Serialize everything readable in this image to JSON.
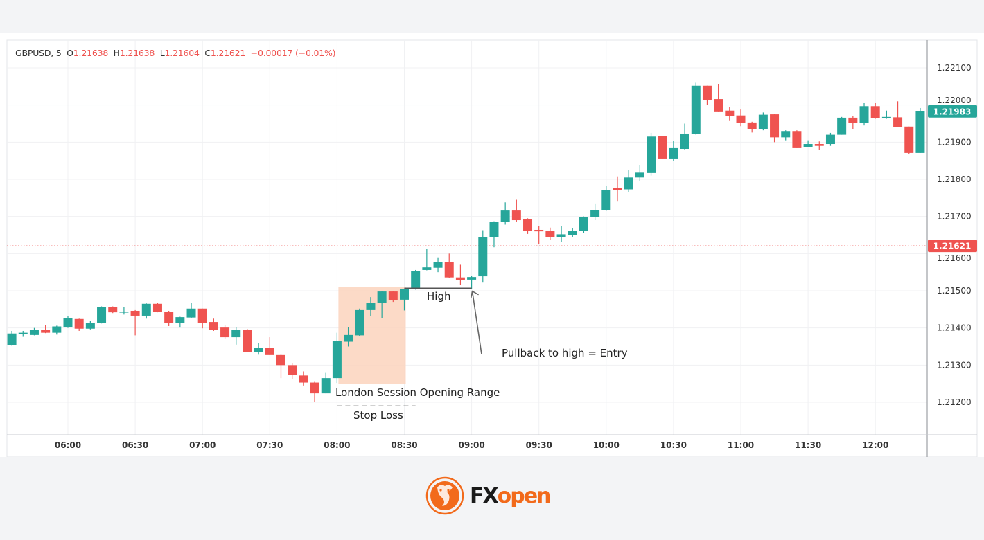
{
  "legend": {
    "symbol": "GBPUSD, 5",
    "open_label": "O",
    "open": "1.21638",
    "high_label": "H",
    "high": "1.21638",
    "low_label": "L",
    "low": "1.21604",
    "close_label": "C",
    "close": "1.21621",
    "change": "−0.00017 (−0.01%)"
  },
  "annotations": {
    "range_label": "London Session Opening Range",
    "stop_label": "Stop Loss",
    "high_label": "High",
    "entry_label": "Pullback to high = Entry"
  },
  "logo": {
    "text": "FXopen",
    "fx": "FX",
    "open": "open"
  },
  "colors": {
    "up": "#26a69a",
    "down": "#ef5350",
    "range_box": "#fbd3bd",
    "brand": "#f26a1b"
  },
  "chart_data": {
    "type": "candlestick",
    "title": "",
    "xlabel": "",
    "ylabel": "",
    "interval_minutes": 5,
    "first_candle_time": "05:35",
    "ylim": [
      1.211,
      1.222
    ],
    "grid": true,
    "y_ticks": [
      "1.21200",
      "1.21300",
      "1.21400",
      "1.21500",
      "1.21600",
      "1.21700",
      "1.21800",
      "1.21900",
      "1.22000",
      "1.22100"
    ],
    "x_ticks": [
      "06:00",
      "06:30",
      "07:00",
      "07:30",
      "08:00",
      "08:30",
      "09:00",
      "09:30",
      "10:00",
      "10:30",
      "11:00",
      "11:30",
      "12:00"
    ],
    "last_price_label": "1.21983",
    "current_price_line": 1.21621,
    "current_price_label": "1.21621",
    "ohlc": [
      [
        1.21353,
        1.21392,
        1.21352,
        1.21385
      ],
      [
        1.21385,
        1.21392,
        1.21376,
        1.21387
      ],
      [
        1.21381,
        1.214,
        1.2138,
        1.21394
      ],
      [
        1.21394,
        1.21408,
        1.21386,
        1.21387
      ],
      [
        1.21387,
        1.21406,
        1.21382,
        1.21404
      ],
      [
        1.21402,
        1.21432,
        1.214,
        1.21426
      ],
      [
        1.21424,
        1.21425,
        1.21392,
        1.21398
      ],
      [
        1.21398,
        1.21418,
        1.21396,
        1.21414
      ],
      [
        1.21414,
        1.21458,
        1.21412,
        1.21457
      ],
      [
        1.21457,
        1.21458,
        1.2144,
        1.21442
      ],
      [
        1.21442,
        1.21457,
        1.21436,
        1.21444
      ],
      [
        1.21446,
        1.21448,
        1.2138,
        1.21433
      ],
      [
        1.21433,
        1.21466,
        1.21425,
        1.21465
      ],
      [
        1.21465,
        1.21468,
        1.21442,
        1.21444
      ],
      [
        1.21444,
        1.21446,
        1.21405,
        1.21414
      ],
      [
        1.21414,
        1.2143,
        1.21401,
        1.21429
      ],
      [
        1.21428,
        1.21467,
        1.21426,
        1.21452
      ],
      [
        1.21452,
        1.21452,
        1.21399,
        1.21414
      ],
      [
        1.21416,
        1.21425,
        1.21392,
        1.21394
      ],
      [
        1.21401,
        1.21407,
        1.21371,
        1.21375
      ],
      [
        1.21375,
        1.21402,
        1.21355,
        1.21394
      ],
      [
        1.21394,
        1.21397,
        1.21335,
        1.21335
      ],
      [
        1.21335,
        1.2136,
        1.21328,
        1.21347
      ],
      [
        1.21347,
        1.21375,
        1.21327,
        1.21327
      ],
      [
        1.21327,
        1.2133,
        1.21265,
        1.213
      ],
      [
        1.213,
        1.21305,
        1.21262,
        1.21273
      ],
      [
        1.21272,
        1.21283,
        1.21245,
        1.21253
      ],
      [
        1.21253,
        1.21255,
        1.21201,
        1.21224
      ],
      [
        1.21224,
        1.21279,
        1.21224,
        1.21265
      ],
      [
        1.21265,
        1.21387,
        1.21252,
        1.21364
      ],
      [
        1.21363,
        1.21402,
        1.2135,
        1.21381
      ],
      [
        1.2138,
        1.21452,
        1.21378,
        1.21448
      ],
      [
        1.21448,
        1.21483,
        1.21432,
        1.21468
      ],
      [
        1.21467,
        1.215,
        1.21426,
        1.21498
      ],
      [
        1.21498,
        1.215,
        1.2147,
        1.21474
      ],
      [
        1.21476,
        1.21506,
        1.21447,
        1.21504
      ],
      [
        1.21504,
        1.21556,
        1.21503,
        1.21554
      ],
      [
        1.21556,
        1.21612,
        1.21555,
        1.21563
      ],
      [
        1.21562,
        1.2159,
        1.2155,
        1.21577
      ],
      [
        1.21577,
        1.216,
        1.21535,
        1.21536
      ],
      [
        1.21536,
        1.2157,
        1.21515,
        1.21528
      ],
      [
        1.2153,
        1.2154,
        1.21505,
        1.21537
      ],
      [
        1.21539,
        1.21663,
        1.21522,
        1.21644
      ],
      [
        1.21644,
        1.21687,
        1.21617,
        1.21685
      ],
      [
        1.21685,
        1.21738,
        1.21678,
        1.21716
      ],
      [
        1.21716,
        1.21745,
        1.21685,
        1.2169
      ],
      [
        1.21692,
        1.21695,
        1.21653,
        1.21662
      ],
      [
        1.21664,
        1.21675,
        1.21625,
        1.2166
      ],
      [
        1.21662,
        1.2167,
        1.21636,
        1.21644
      ],
      [
        1.21644,
        1.21675,
        1.21632,
        1.21652
      ],
      [
        1.2165,
        1.21668,
        1.21645,
        1.21662
      ],
      [
        1.21662,
        1.217,
        1.21655,
        1.21698
      ],
      [
        1.21698,
        1.21735,
        1.2169,
        1.21717
      ],
      [
        1.21717,
        1.21783,
        1.21715,
        1.21772
      ],
      [
        1.21776,
        1.21808,
        1.2174,
        1.21772
      ],
      [
        1.21773,
        1.21826,
        1.21765,
        1.21805
      ],
      [
        1.21805,
        1.21838,
        1.21795,
        1.21818
      ],
      [
        1.21817,
        1.21925,
        1.2181,
        1.21915
      ],
      [
        1.21917,
        1.21917,
        1.21856,
        1.21856
      ],
      [
        1.21856,
        1.21904,
        1.2185,
        1.21884
      ],
      [
        1.21882,
        1.2195,
        1.2188,
        1.21923
      ],
      [
        1.21923,
        1.2206,
        1.2192,
        1.22052
      ],
      [
        1.22052,
        1.22052,
        1.22,
        1.22014
      ],
      [
        1.22016,
        1.22056,
        1.21981,
        1.21981
      ],
      [
        1.21985,
        1.21995,
        1.21957,
        1.2197
      ],
      [
        1.21972,
        1.21988,
        1.21943,
        1.21951
      ],
      [
        1.21953,
        1.21955,
        1.21926,
        1.21936
      ],
      [
        1.21936,
        1.2198,
        1.21932,
        1.21974
      ],
      [
        1.21975,
        1.21977,
        1.219,
        1.21913
      ],
      [
        1.21913,
        1.21932,
        1.21905,
        1.2193
      ],
      [
        1.2193,
        1.21932,
        1.21884,
        1.21884
      ],
      [
        1.21886,
        1.21905,
        1.21886,
        1.21895
      ],
      [
        1.21895,
        1.21902,
        1.2188,
        1.2189
      ],
      [
        1.21895,
        1.21925,
        1.2189,
        1.2192
      ],
      [
        1.2192,
        1.21968,
        1.2192,
        1.21966
      ],
      [
        1.21966,
        1.2197,
        1.21935,
        1.21951
      ],
      [
        1.21951,
        1.22005,
        1.21945,
        1.21997
      ],
      [
        1.21997,
        1.22005,
        1.21963,
        1.21965
      ],
      [
        1.21965,
        1.21985,
        1.21963,
        1.21968
      ],
      [
        1.21967,
        1.2201,
        1.2194,
        1.2194
      ],
      [
        1.21942,
        1.21942,
        1.21868,
        1.21871
      ],
      [
        1.21871,
        1.21992,
        1.21871,
        1.21983
      ]
    ],
    "shapes": {
      "range_box": {
        "from": "08:00",
        "to": "08:30",
        "top": 1.21511,
        "bottom": 1.21249
      },
      "high_line": {
        "from": "08:30",
        "to": "09:00",
        "price": 1.21507
      },
      "stop_loss_line": {
        "from": "08:00",
        "to": "08:35",
        "price": 1.2119
      },
      "entry_arrow": {
        "from_time": "09:10",
        "from_price": 1.2135,
        "to_time": "09:00",
        "to_price": 1.21495
      }
    }
  }
}
